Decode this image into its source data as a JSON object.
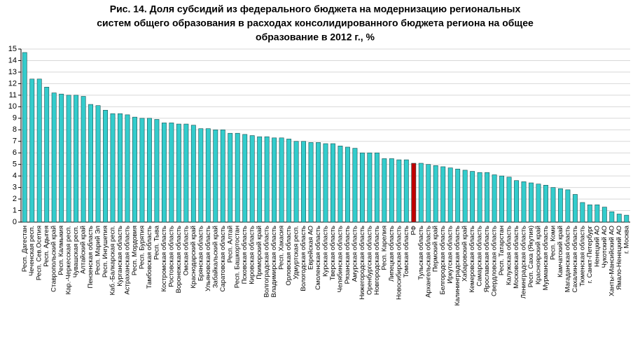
{
  "chart_data": {
    "type": "bar",
    "title": [
      "Рис. 14. Доля субсидий из федерального бюджета на модернизацию региональных",
      "систем общего образования в расходах консолидированного бюджета региона на общее",
      "образование в 2012 г., %"
    ],
    "categories": [
      "Респ. Дагестан",
      "Чеченская респ.",
      "Респ. Сев.Осетия",
      "Респ. Адыгея",
      "Ставропольский край",
      "Респ. Калмыкия",
      "Кар.-Черкесская респ.",
      "Чувашская респ.",
      "Алтайский край",
      "Пензенская область",
      "Респ. Марий Эл",
      "Респ. Ингушетия",
      "Каб.-Балкарская респ.",
      "Курганская область",
      "Астраханская область",
      "Респ. Мордовия",
      "Респ. Бурятия",
      "Тамбовская область",
      "Респ. Тыва",
      "Костромская область",
      "Ростовская область",
      "Воронежская область",
      "Омская область",
      "Краснодарский край",
      "Брянская область",
      "Ульяновская область",
      "Забайкальский край",
      "Саратовская область",
      "Респ. Алтай",
      "Респ. Башкортостан",
      "Псковская область",
      "Кировская область",
      "Приморский край",
      "Волгоградская область",
      "Владимирская область",
      "Респ. Хакасия",
      "Орловская область",
      "Удмуртская респ.",
      "Вологодская область",
      "Еврейская АО",
      "Смоленская область",
      "Курская область",
      "Тверская область",
      "Челябинская область",
      "Рязанская область",
      "Амурская область",
      "Нижегородская область",
      "Оренбургская область",
      "Новгородская область",
      "Респ. Карелия",
      "Липецкая область",
      "Новосибирская область",
      "Томская область",
      "РФ",
      "Тульская область",
      "Архангельская область",
      "Пермский край",
      "Белгородская область",
      "Иркутская область",
      "Калининградская область",
      "Хабаровский край",
      "Кемеровская область",
      "Самарская область",
      "Ярославская область",
      "Свердловская область",
      "Респ. Татарстан",
      "Калужская область",
      "Московская область",
      "Ленинградская область",
      "Респ. Саха (Якутия)",
      "Красноярский край",
      "Мурманская область",
      "Респ. Коми",
      "Камчатский край",
      "Магаданская область",
      "Сахалинская область",
      "Тюменская область",
      "г. Санкт-Петербург",
      "Ненецкий АО",
      "Чукотский АО",
      "Ханты-Мансийский АО",
      "Ямало-Ненецкий АО",
      "г. Москва"
    ],
    "values": [
      14.7,
      12.4,
      12.4,
      11.7,
      11.2,
      11.1,
      11.0,
      11.0,
      10.9,
      10.2,
      10.1,
      9.7,
      9.4,
      9.4,
      9.3,
      9.1,
      9.0,
      9.0,
      8.9,
      8.6,
      8.6,
      8.5,
      8.5,
      8.4,
      8.1,
      8.1,
      8.0,
      8.0,
      7.7,
      7.7,
      7.6,
      7.5,
      7.4,
      7.4,
      7.3,
      7.3,
      7.2,
      7.0,
      7.0,
      6.9,
      6.9,
      6.8,
      6.8,
      6.6,
      6.5,
      6.4,
      6.0,
      6.0,
      6.0,
      5.5,
      5.5,
      5.4,
      5.4,
      5.1,
      5.1,
      5.0,
      4.9,
      4.8,
      4.7,
      4.6,
      4.5,
      4.4,
      4.3,
      4.3,
      4.1,
      4.0,
      3.9,
      3.6,
      3.5,
      3.4,
      3.3,
      3.2,
      3.0,
      2.9,
      2.8,
      2.4,
      1.7,
      1.5,
      1.5,
      1.3,
      0.9,
      0.7,
      0.6
    ],
    "color": "#33cccc",
    "highlight_category": "РФ",
    "highlight_color": "#c00000",
    "ylim": [
      0,
      15
    ],
    "yticks": [
      0,
      1,
      2,
      3,
      4,
      5,
      6,
      7,
      8,
      9,
      10,
      11,
      12,
      13,
      14,
      15
    ],
    "grid": true
  }
}
